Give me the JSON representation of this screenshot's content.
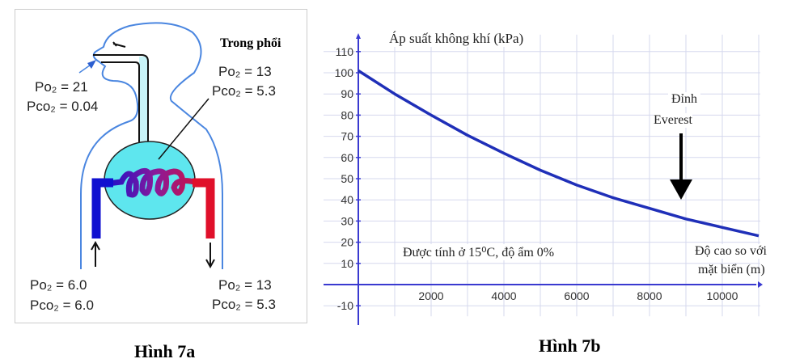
{
  "fig_a": {
    "caption": "Hình 7a",
    "lung_label": "Trong phổi",
    "inhaled": {
      "po2": "Po₂ = 21",
      "pco2": "Pco₂ = 0.04"
    },
    "lungs": {
      "po2": "Po₂ = 13",
      "pco2": "Pco₂ = 5.3"
    },
    "venous_in": {
      "po2": "Po₂ = 6.0",
      "pco2": "Pco₂ = 6.0"
    },
    "arterial_out": {
      "po2": "Po₂ = 13",
      "pco2": "Pco₂ = 5.3"
    },
    "colors": {
      "outline": "#4a86e0",
      "lung": "#5ee6ee",
      "venous": "#1010d0",
      "arterial": "#e0102a"
    }
  },
  "fig_b": {
    "caption": "Hình 7b",
    "note": "Được tính ở 15⁰C, độ ẩm 0%",
    "everest_label_1": "Đỉnh",
    "everest_label_2": "Everest",
    "everest_altitude": 8848
  },
  "chart_data": {
    "type": "line",
    "ylabel": "Áp suất không khí (kPa)",
    "xlabel_1": "Độ cao so với",
    "xlabel_2": "mặt biển (m)",
    "x": [
      0,
      1000,
      2000,
      3000,
      4000,
      5000,
      6000,
      7000,
      8000,
      9000,
      10000,
      11000
    ],
    "y": [
      101,
      90,
      80,
      70.5,
      62,
      54,
      47,
      41,
      36,
      31,
      27,
      23
    ],
    "xlim": [
      0,
      11000
    ],
    "ylim": [
      -15,
      120
    ],
    "xticks": [
      "2000",
      "4000",
      "6000",
      "8000",
      "10000"
    ],
    "yticks": [
      "-10",
      "10",
      "20",
      "30",
      "40",
      "50",
      "60",
      "70",
      "80",
      "90",
      "100",
      "110"
    ],
    "grid": true,
    "line_color": "#1f2fb8"
  }
}
